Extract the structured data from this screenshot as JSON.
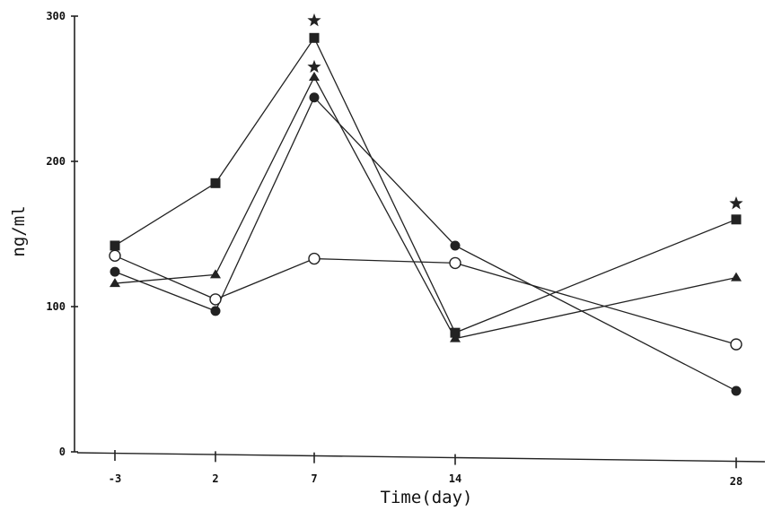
{
  "chart_data": {
    "type": "line",
    "xlabel": "Time(day)",
    "ylabel": "ng/ml",
    "x": [
      -3,
      2,
      7,
      14,
      28
    ],
    "x_tick_labels": [
      "-3",
      "2",
      "7",
      "14",
      "28"
    ],
    "y_ticks": [
      0,
      100,
      200,
      300
    ],
    "y_tick_labels": [
      "0",
      "100",
      "200",
      "300"
    ],
    "ylim": [
      0,
      300
    ],
    "grid": false,
    "legend": "none",
    "line_color": "#222222",
    "series": [
      {
        "marker": "filled-square",
        "values": [
          142,
          185,
          285,
          82,
          160
        ]
      },
      {
        "marker": "filled-triangle",
        "values": [
          116,
          122,
          258,
          78,
          120
        ]
      },
      {
        "marker": "filled-circle",
        "values": [
          124,
          97,
          244,
          142,
          42
        ]
      },
      {
        "marker": "open-circle",
        "values": [
          135,
          105,
          133,
          130,
          74
        ]
      }
    ],
    "annotations": [
      {
        "marker": "star",
        "x": 7,
        "y": 297
      },
      {
        "marker": "star",
        "x": 7,
        "y": 265
      },
      {
        "marker": "star",
        "x": 28,
        "y": 171
      }
    ]
  }
}
